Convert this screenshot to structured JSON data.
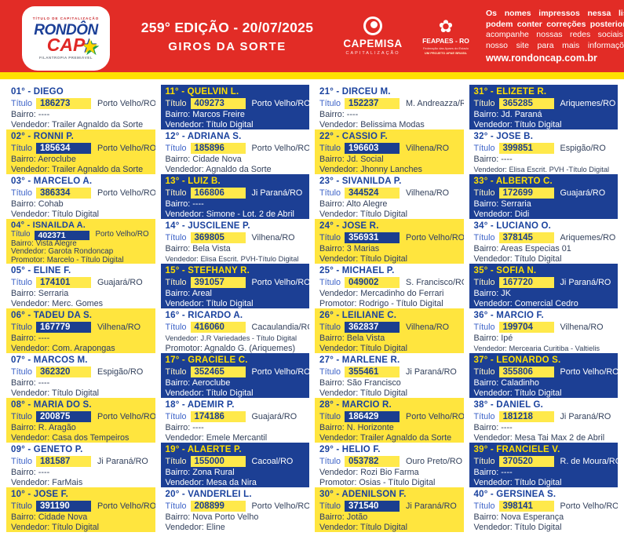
{
  "header": {
    "logo": {
      "top": "TÍTULO DE CAPITALIZAÇÃO",
      "brand1": "RONDÔN",
      "brand2": "CAP",
      "bottom": "FILANTROPIA PREMIÁVEL"
    },
    "edition": "259° EDIÇÃO - 20/07/2025",
    "subtitle": "GIROS DA SORTE",
    "capemisa": {
      "name": "CAPEMISA",
      "sub": "CAPITALIZAÇÃO"
    },
    "feapaes": {
      "name": "FEAPAES - RO",
      "sub1": "Federação das Apaes do Estado",
      "sub2": "UM PROJETO APAE BRASIL"
    },
    "notice_lines": [
      "Os nomes impressos nessa lista",
      "podem conter correções posteriores",
      "acompanhe nossas redes sociais e",
      "nosso site para mais informações."
    ],
    "website": "www.rondoncap.com.br"
  },
  "labels": {
    "titulo": "Título",
    "bairro": "Bairro:",
    "vendedor": "Vendedor:",
    "promotor": "Promotor:"
  },
  "colors": {
    "header_red": "#E22C26",
    "strip_yellow": "#FFDF00",
    "card_yellow": "#FFE53E",
    "card_blue": "#1C3F94",
    "chip_yellow": "#FFE94B",
    "chip_blue": "#1B3E8F",
    "name_blue": "#1A429E",
    "name_yellow": "#FFDF00"
  },
  "winners": [
    {
      "pos": "01°",
      "name": "DIEGO",
      "titulo": "186273",
      "city": "Porto Velho/RO",
      "bairro": "----",
      "vendedor": "Trailer Agnaldo da Sorte",
      "style": "white"
    },
    {
      "pos": "02°",
      "name": "RONNI P.",
      "titulo": "185634",
      "city": "Porto Velho/RO",
      "bairro": "Aeroclube",
      "vendedor": "Trailer Agnaldo da Sorte",
      "style": "yellow"
    },
    {
      "pos": "03°",
      "name": "MARCELO A.",
      "titulo": "386334",
      "city": "Porto Velho/RO",
      "bairro": "Cohab",
      "vendedor": "Título Digital",
      "style": "white"
    },
    {
      "pos": "04°",
      "name": "ISNAILDA A.",
      "titulo": "402371",
      "city": "Porto Velho/RO",
      "bairro": "Vista Alegre",
      "vendedor": "Garota Rondoncap",
      "promotor": "Marcelo - Título Digital",
      "style": "yellow"
    },
    {
      "pos": "05°",
      "name": "ELINE F.",
      "titulo": "174101",
      "city": "Guajará/RO",
      "bairro": "Serraria",
      "vendedor": "Merc. Gomes",
      "style": "white"
    },
    {
      "pos": "06°",
      "name": "TADEU DA S.",
      "titulo": "167779",
      "city": "Vilhena/RO",
      "bairro": "----",
      "vendedor": "Com. Arapongas",
      "style": "yellow"
    },
    {
      "pos": "07°",
      "name": "MARCOS M.",
      "titulo": "362320",
      "city": "Espigão/RO",
      "bairro": "----",
      "vendedor": "Título Digital",
      "style": "white"
    },
    {
      "pos": "08°",
      "name": "MARIA DO S.",
      "titulo": "200875",
      "city": "Porto Velho/RO",
      "bairro": "R. Aragão",
      "vendedor": "Casa dos Tempeiros",
      "style": "yellow"
    },
    {
      "pos": "09°",
      "name": "GENETO P.",
      "titulo": "181587",
      "city": "Ji Paraná/RO",
      "bairro": "----",
      "vendedor": "FarMais",
      "style": "white"
    },
    {
      "pos": "10°",
      "name": "JOSE F.",
      "titulo": "391190",
      "city": "Porto Velho/RO",
      "bairro": "Cidade Nova",
      "vendedor": "Título Digital",
      "style": "yellow"
    },
    {
      "pos": "11°",
      "name": "QUELVIN L.",
      "titulo": "409273",
      "city": "Porto Velho/RO",
      "bairro": "Marcos Freire",
      "vendedor": "Título Digital",
      "style": "blue"
    },
    {
      "pos": "12°",
      "name": "ADRIANA S.",
      "titulo": "185896",
      "city": "Porto Velho/RO",
      "bairro": "Cidade Nova",
      "vendedor": "Agnaldo da Sorte",
      "style": "white"
    },
    {
      "pos": "13°",
      "name": "LUIZ B.",
      "titulo": "166806",
      "city": "Ji Paraná/RO",
      "bairro": "----",
      "vendedor": "Simone - Lot. 2 de Abril",
      "style": "blue"
    },
    {
      "pos": "14°",
      "name": "JUSCILENE P.",
      "titulo": "369805",
      "city": "Vilhena/RO",
      "bairro": "Bela Vista",
      "vendedor": "Elisa Escrit. PVH-Título Digital",
      "style": "white"
    },
    {
      "pos": "15°",
      "name": "STEFHANY R.",
      "titulo": "391057",
      "city": "Porto Velho/RO",
      "bairro": "Areal",
      "vendedor": "Título Digital",
      "style": "blue"
    },
    {
      "pos": "16°",
      "name": "RICARDO A.",
      "titulo": "416060",
      "city": "Cacaulandia/RO",
      "vendedor": "J.R Variedades - Título Digital",
      "promotor": "Agnaldo G. (Ariquemes)",
      "style": "white"
    },
    {
      "pos": "17°",
      "name": "GRACIELE C.",
      "titulo": "352465",
      "city": "Porto Velho/RO",
      "bairro": "Aeroclube",
      "vendedor": "Título Digital",
      "style": "blue"
    },
    {
      "pos": "18°",
      "name": "ADEMIR P.",
      "titulo": "174186",
      "city": "Guajará/RO",
      "bairro": "----",
      "vendedor": "Emele Mercantil",
      "style": "white"
    },
    {
      "pos": "19°",
      "name": "ALAERTE P.",
      "titulo": "155000",
      "city": "Cacoal/RO",
      "bairro": "Zona Rural",
      "vendedor": "Mesa da Nira",
      "style": "blue"
    },
    {
      "pos": "20°",
      "name": "VANDERLEI L.",
      "titulo": "208899",
      "city": "Porto Velho/RO",
      "bairro": "Nova Porto Velho",
      "vendedor": "Eline",
      "style": "white"
    },
    {
      "pos": "21°",
      "name": "DIRCEU M.",
      "titulo": "152237",
      "city": "M. Andreazza/RO",
      "bairro": "----",
      "vendedor": "Belissima Modas",
      "style": "white"
    },
    {
      "pos": "22°",
      "name": "CASSIO F.",
      "titulo": "196603",
      "city": "Vilhena/RO",
      "bairro": "Jd. Social",
      "vendedor": "Jhonny Lanches",
      "style": "yellow"
    },
    {
      "pos": "23°",
      "name": "SIVANILDA P.",
      "titulo": "344524",
      "city": "Vilhena/RO",
      "bairro": "Alto Alegre",
      "vendedor": "Título Digital",
      "style": "white"
    },
    {
      "pos": "24°",
      "name": "JOSE R.",
      "titulo": "356931",
      "city": "Porto Velho/RO",
      "bairro": "3 Marias",
      "vendedor": "Título Digital",
      "style": "yellow"
    },
    {
      "pos": "25°",
      "name": "MICHAEL P.",
      "titulo": "049002",
      "city": "S. Francisco/RO",
      "vendedor": "Mercadinho do Ferrari",
      "promotor": "Rodrigo - Título Digital",
      "style": "white"
    },
    {
      "pos": "26°",
      "name": "LEILIANE C.",
      "titulo": "362837",
      "city": "Vilhena/RO",
      "bairro": "Bela Vista",
      "vendedor": "Título Digital",
      "style": "yellow"
    },
    {
      "pos": "27°",
      "name": "MARLENE R.",
      "titulo": "355461",
      "city": "Ji Paraná/RO",
      "bairro": "São Francisco",
      "vendedor": "Título Digital",
      "style": "white"
    },
    {
      "pos": "28°",
      "name": "MARCIO R.",
      "titulo": "186429",
      "city": "Porto Velho/RO",
      "bairro": "N. Horizonte",
      "vendedor": "Trailer Agnaldo da Sorte",
      "style": "yellow"
    },
    {
      "pos": "29°",
      "name": "HELIO F.",
      "titulo": "053782",
      "city": "Ouro Preto/RO",
      "vendedor": "Rozi Bio Farma",
      "promotor": "Osias - Título Digital",
      "style": "white"
    },
    {
      "pos": "30°",
      "name": "ADENILSON F.",
      "titulo": "371540",
      "city": "Ji Paraná/RO",
      "bairro": "Jotão",
      "vendedor": "Título Digital",
      "style": "yellow"
    },
    {
      "pos": "31°",
      "name": "ELIZETE R.",
      "titulo": "365285",
      "city": "Ariquemes/RO",
      "bairro": "Jd. Paraná",
      "vendedor": "Título Digital",
      "style": "blue"
    },
    {
      "pos": "32°",
      "name": "JOSE B.",
      "titulo": "399851",
      "city": "Espigão/RO",
      "bairro": "----",
      "vendedor": "Elisa Escrit. PVH -Título Digital",
      "style": "white"
    },
    {
      "pos": "33°",
      "name": "ALBERTO C.",
      "titulo": "172699",
      "city": "Guajará/RO",
      "bairro": "Serraria",
      "vendedor": "Didi",
      "style": "blue"
    },
    {
      "pos": "34°",
      "name": "LUCIANO O.",
      "titulo": "378145",
      "city": "Ariquemes/RO",
      "bairro": "Areas Especias 01",
      "vendedor": "Título Digital",
      "style": "white"
    },
    {
      "pos": "35°",
      "name": "SOFIA N.",
      "titulo": "167720",
      "city": "Ji Paraná/RO",
      "bairro": "JK",
      "vendedor": "Comercial Cedro",
      "style": "blue"
    },
    {
      "pos": "36°",
      "name": "MARCIO F.",
      "titulo": "199704",
      "city": "Vilhena/RO",
      "bairro": "Ipé",
      "vendedor": "Mercearia Curitiba - Valtielis",
      "style": "white"
    },
    {
      "pos": "37°",
      "name": "LEONARDO S.",
      "titulo": "355806",
      "city": "Porto Velho/RO",
      "bairro": "Caladinho",
      "vendedor": "Título Digital",
      "style": "blue"
    },
    {
      "pos": "38°",
      "name": "DANIEL G.",
      "titulo": "181218",
      "city": "Ji Paraná/RO",
      "bairro": "----",
      "vendedor": "Mesa Tai Max 2 de Abril",
      "style": "white"
    },
    {
      "pos": "39°",
      "name": "FRANCIELE V.",
      "titulo": "370520",
      "city": "R. de Moura/RO",
      "bairro": "----",
      "vendedor": "Título Digital",
      "style": "blue"
    },
    {
      "pos": "40°",
      "name": "GERSINEA S.",
      "titulo": "398141",
      "city": "Porto Velho/RO",
      "bairro": "Nova Esperança",
      "vendedor": "Título Digital",
      "style": "white"
    }
  ]
}
